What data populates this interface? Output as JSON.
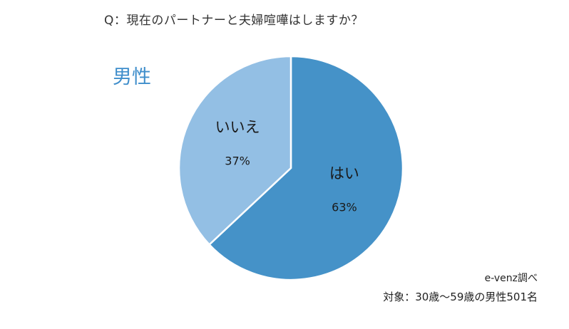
{
  "question": "Q：現在のパートナーと夫婦喧嘩はしますか？",
  "group_label": "男性",
  "source": "e-venz調べ",
  "target_note": "対象：30歳～59歳の男性501名",
  "chart_data": {
    "type": "pie",
    "title": "Q：現在のパートナーと夫婦喧嘩はしますか？",
    "subtitle": "男性",
    "slices": [
      {
        "label": "はい",
        "value": 63,
        "value_label": "63%",
        "color": "#4592c8"
      },
      {
        "label": "いいえ",
        "value": 37,
        "value_label": "37%",
        "color": "#93bfe4"
      }
    ],
    "start": "12 o'clock",
    "direction": "clockwise",
    "legend": "none",
    "grid": false
  }
}
